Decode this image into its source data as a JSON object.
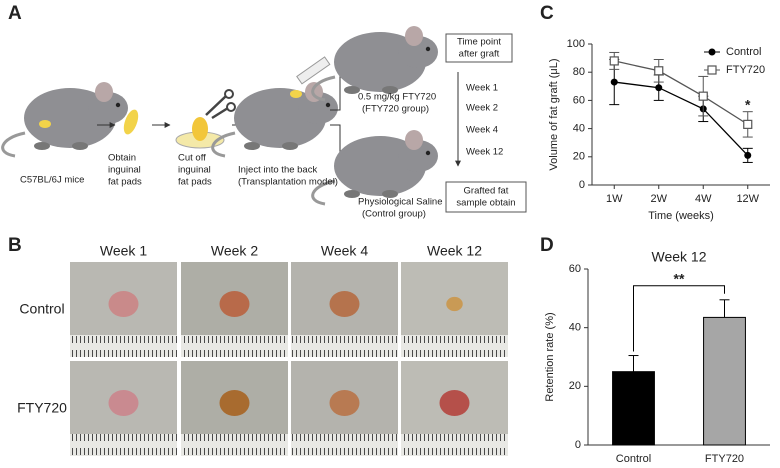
{
  "panel_labels": [
    "A",
    "B",
    "C",
    "D"
  ],
  "diagram": {
    "mice": [
      "C57BL/6J mice"
    ],
    "obtain": [
      "Obtain",
      "inguinal",
      "fat  pads"
    ],
    "cut": [
      "Cut off",
      "inguinal",
      "fat  pads"
    ],
    "inject": [
      "Inject into the back",
      "(Transplantation model)"
    ],
    "fty_group": [
      "0.5 mg/kg FTY720",
      "(FTY720 group)"
    ],
    "control_group": [
      "Physiological Saline",
      "(Control group)"
    ],
    "time_point": [
      "Time point",
      "after graft"
    ],
    "weeks": [
      "Week 1",
      "Week 2",
      "Week 4",
      "Week 12"
    ],
    "grafted": [
      "Grafted fat",
      "sample obtain"
    ]
  },
  "photos": {
    "columns": [
      "Week 1",
      "Week 2",
      "Week 4",
      "Week 12"
    ],
    "rows": [
      "Control",
      "FTY720"
    ]
  },
  "chart_data": [
    {
      "type": "line",
      "categories": [
        "1W",
        "2W",
        "4W",
        "12W"
      ],
      "xlabel": "Time (weeks)",
      "ylabel": "Volume of fat graft (μL)",
      "ylim": [
        0,
        100
      ],
      "yticks": [
        0,
        20,
        40,
        60,
        80,
        100
      ],
      "legend": "upper right",
      "annotation": "*",
      "series": [
        {
          "name": "Control",
          "color": "#000000",
          "marker": "circle",
          "values": [
            73,
            69,
            54,
            21
          ],
          "errors": [
            16,
            9,
            9,
            5
          ]
        },
        {
          "name": "FTY720",
          "color": "#555555",
          "marker": "square-open",
          "values": [
            88,
            81,
            63,
            43
          ],
          "errors": [
            6,
            8,
            14,
            9
          ]
        }
      ]
    },
    {
      "type": "bar",
      "title": "Week 12",
      "categories": [
        "Control",
        "FTY720"
      ],
      "values": [
        25,
        43.5
      ],
      "errors": [
        5.5,
        6
      ],
      "colors": [
        "#000000",
        "#a6a6a6"
      ],
      "ylabel": "Retention rate (%)",
      "ylim": [
        0,
        60
      ],
      "yticks": [
        0,
        20,
        40,
        60
      ],
      "annotation": "**"
    }
  ]
}
